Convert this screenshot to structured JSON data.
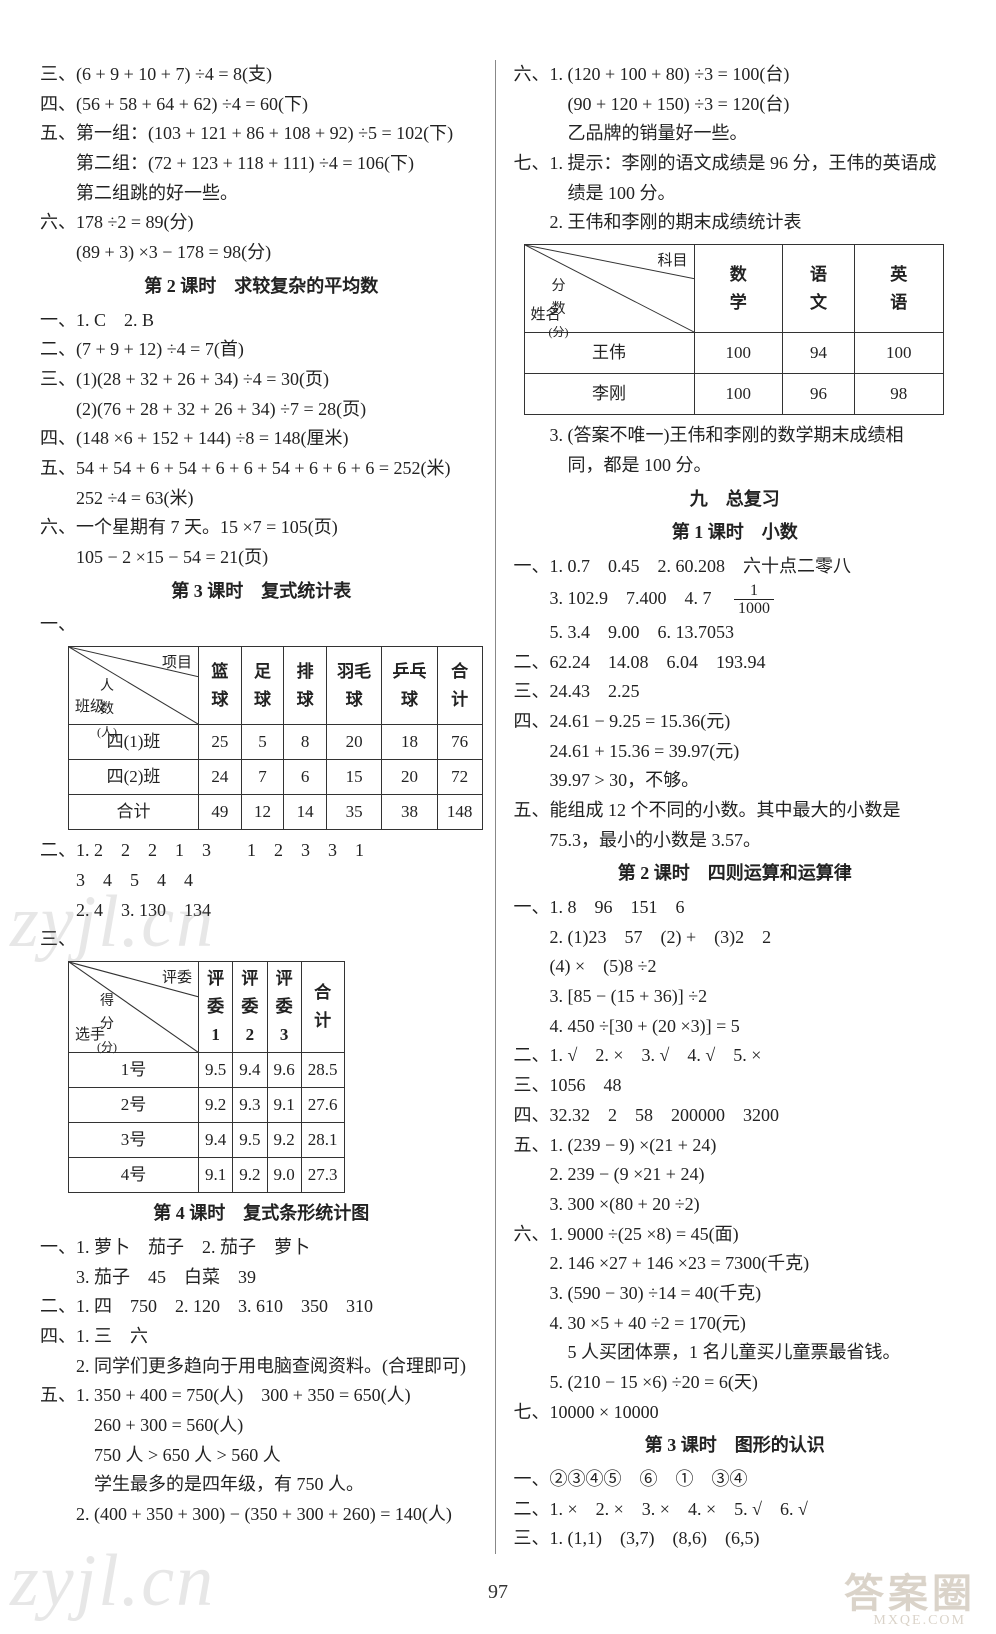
{
  "page_number": "97",
  "watermark_text": "zyjl.cn",
  "stamp_text": "答案圈",
  "stamp_sub": "MXQE.COM",
  "left": {
    "lines_top": [
      "三、(6 + 9 + 10 + 7) ÷4 = 8(支)",
      "四、(56 + 58 + 64 + 62) ÷4 = 60(下)",
      "五、第一组：(103 + 121 + 86 + 108 + 92) ÷5 = 102(下)",
      "　　第二组：(72 + 123 + 118 + 111) ÷4 = 106(下)",
      "　　第二组跳的好一些。",
      "六、178 ÷2 = 89(分)",
      "　　(89 + 3) ×3 − 178 = 98(分)"
    ],
    "h1": "第 2 课时　求较复杂的平均数",
    "lines_b": [
      "一、1. C　2. B",
      "二、(7 + 9 + 12) ÷4 = 7(首)",
      "三、(1)(28 + 32 + 26 + 34) ÷4 = 30(页)",
      "　　(2)(76 + 28 + 32 + 26 + 34) ÷7 = 28(页)",
      "四、(148 ×6 + 152 + 144) ÷8 = 148(厘米)",
      "五、54 + 54 + 6 + 54 + 6 + 6 + 54 + 6 + 6 + 6 = 252(米)",
      "　　252 ÷4 = 63(米)",
      "六、一个星期有 7 天。15 ×7 = 105(页)",
      "　　105 − 2 ×15 − 54 = 21(页)"
    ],
    "h2": "第 3 课时　复式统计表",
    "table1": {
      "diag": {
        "top": "项目",
        "mid": "人\n数\n(人)",
        "bot": "班级"
      },
      "headers": [
        "篮球",
        "足球",
        "排球",
        "羽毛球",
        "乒乓球",
        "合计"
      ],
      "rows": [
        {
          "label": "四(1)班",
          "cells": [
            "25",
            "5",
            "8",
            "20",
            "18",
            "76"
          ]
        },
        {
          "label": "四(2)班",
          "cells": [
            "24",
            "7",
            "6",
            "15",
            "20",
            "72"
          ]
        },
        {
          "label": "合计",
          "cells": [
            "49",
            "12",
            "14",
            "35",
            "38",
            "148"
          ]
        }
      ]
    },
    "lines_c": [
      "二、1. 2　2　2　1　3　　1　2　3　3　1",
      "　　3　4　5　4　4",
      "　　2. 4　3. 130　134"
    ],
    "table2": {
      "diag": {
        "top": "评委",
        "mid": "得\n分\n(分)",
        "bot": "选手"
      },
      "headers": [
        "评委1",
        "评委2",
        "评委3",
        "合计"
      ],
      "rows": [
        {
          "label": "1号",
          "cells": [
            "9.5",
            "9.4",
            "9.6",
            "28.5"
          ]
        },
        {
          "label": "2号",
          "cells": [
            "9.2",
            "9.3",
            "9.1",
            "27.6"
          ]
        },
        {
          "label": "3号",
          "cells": [
            "9.4",
            "9.5",
            "9.2",
            "28.1"
          ]
        },
        {
          "label": "4号",
          "cells": [
            "9.1",
            "9.2",
            "9.0",
            "27.3"
          ]
        }
      ]
    },
    "h3": "第 4 课时　复式条形统计图",
    "lines_d": [
      "一、1. 萝卜　茄子　2. 茄子　萝卜",
      "　　3. 茄子　45　白菜　39",
      "二、1. 四　750　2. 120　3. 610　350　310",
      "四、1. 三　六",
      "　　2. 同学们更多趋向于用电脑查阅资料。(合理即可)",
      "五、1. 350 + 400 = 750(人)　300 + 350 = 650(人)",
      "　　　260 + 300 = 560(人)",
      "　　　750 人 > 650 人 > 560 人",
      "　　　学生最多的是四年级，有 750 人。",
      "　　2. (400 + 350 + 300) − (350 + 300 + 260) = 140(人)"
    ]
  },
  "right": {
    "lines_top": [
      "六、1. (120 + 100 + 80) ÷3 = 100(台)",
      "　　　(90 + 120 + 150) ÷3 = 120(台)",
      "　　　乙品牌的销量好一些。",
      "七、1. 提示：李刚的语文成绩是 96 分，王伟的英语成",
      "　　　绩是 100 分。",
      "　　2. 王伟和李刚的期末成绩统计表"
    ],
    "scores": {
      "diag": {
        "top": "科目",
        "mid": "分\n数\n(分)",
        "bot": "姓名"
      },
      "headers": [
        "数学",
        "语文",
        "英语"
      ],
      "rows": [
        {
          "label": "王伟",
          "cells": [
            "100",
            "94",
            "100"
          ]
        },
        {
          "label": "李刚",
          "cells": [
            "100",
            "96",
            "98"
          ]
        }
      ]
    },
    "lines_b": [
      "　　3. (答案不唯一)王伟和李刚的数学期末成绩相",
      "　　　同，都是 100 分。"
    ],
    "h1": "九　总复习",
    "h2": "第 1 课时　小数",
    "lines_c1": "一、1. 0.7　0.45　2. 60.208　六十点二零八",
    "lines_c2a": "　　3. 102.9　7.400　4. 7　",
    "frac": {
      "num": "1",
      "den": "1000"
    },
    "lines_c": [
      "　　5. 3.4　9.00　6. 13.7053",
      "二、62.24　14.08　6.04　193.94",
      "三、24.43　2.25",
      "四、24.61 − 9.25 = 15.36(元)",
      "　　24.61 + 15.36 = 39.97(元)",
      "　　39.97 > 30，不够。",
      "五、能组成 12 个不同的小数。其中最大的小数是",
      "　　75.3，最小的小数是 3.57。"
    ],
    "h3": "第 2 课时　四则运算和运算律",
    "lines_d": [
      "一、1. 8　96　151　6",
      "　　2. (1)23　57　(2) +　(3)2　2",
      "　　(4) ×　(5)8 ÷2",
      "　　3. [85 − (15 + 36)] ÷2",
      "　　4. 450 ÷[30 + (20 ×3)] = 5",
      "二、1. √　2. ×　3. √　4. √　5. ×",
      "三、1056　48",
      "四、32.32　2　58　200000　3200",
      "五、1. (239 − 9) ×(21 + 24)",
      "　　2. 239 − (9 ×21 + 24)",
      "　　3. 300 ×(80 + 20 ÷2)",
      "六、1. 9000 ÷(25 ×8) = 45(面)",
      "　　2. 146 ×27 + 146 ×23 = 7300(千克)",
      "　　3. (590 − 30) ÷14 = 40(千克)",
      "　　4. 30 ×5 + 40 ÷2 = 170(元)",
      "　　　5 人买团体票，1 名儿童买儿童票最省钱。",
      "　　5. (210 − 15 ×6) ÷20 = 6(天)",
      "七、10000 × 10000"
    ],
    "h4": "第 3 课时　图形的认识",
    "lines_e": [
      "一、②③④⑤　⑥　①　③④",
      "二、1. ×　2. ×　3. ×　4. ×　5. √　6. √",
      "三、1. (1,1)　(3,7)　(8,6)　(6,5)"
    ]
  }
}
